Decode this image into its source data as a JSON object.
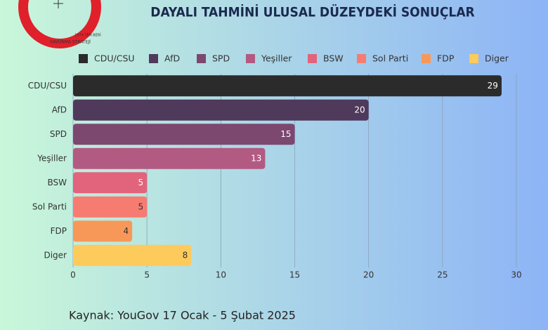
{
  "logo_text": [
    "SAVUNMA STRATEJİ",
    "1974 TEN BERİ"
  ],
  "chart_data": {
    "type": "barh",
    "title": "DAYALI TAHMİNİ ULUSAL DÜZEYDEKİ SONUÇLAR",
    "source": "Kaynak: YouGov 17 Ocak - 5 Şubat 2025",
    "categories": [
      "CDU/CSU",
      "AfD",
      "SPD",
      "Yeşiller",
      "BSW",
      "Sol Parti",
      "FDP",
      "Diger"
    ],
    "values": [
      29,
      20,
      15,
      13,
      5,
      5,
      4,
      8
    ],
    "colors": [
      "#2b2b2b",
      "#4f3a5c",
      "#7c4870",
      "#b25a82",
      "#e2637c",
      "#f67c72",
      "#f89858",
      "#fdca5c"
    ],
    "value_label_colors": [
      "#ffffff",
      "#ffffff",
      "#ffffff",
      "#ffffff",
      "#ffffff",
      "#333333",
      "#333333",
      "#333333"
    ],
    "xlim": [
      0,
      30
    ],
    "xticks": [
      0,
      5,
      10,
      15,
      20,
      25,
      30
    ],
    "grid": true
  }
}
